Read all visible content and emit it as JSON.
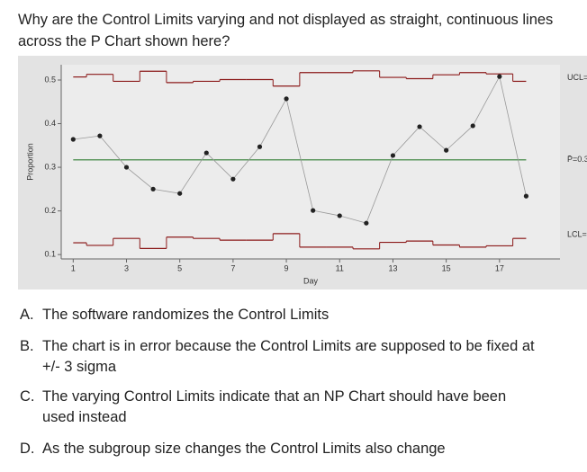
{
  "question": "Why are the Control Limits varying and not displayed as straight, continuous lines across the P Chart shown here?",
  "chart_data": {
    "type": "line",
    "x_label": "Day",
    "y_label": "Proportion",
    "x": [
      1,
      2,
      3,
      4,
      5,
      6,
      7,
      8,
      9,
      10,
      11,
      12,
      13,
      14,
      15,
      16,
      17,
      18
    ],
    "values": [
      0.364,
      0.372,
      0.3,
      0.25,
      0.24,
      0.333,
      0.273,
      0.347,
      0.457,
      0.201,
      0.189,
      0.172,
      0.327,
      0.393,
      0.339,
      0.395,
      0.508,
      0.234
    ],
    "ucl": [
      0.507,
      0.513,
      0.497,
      0.52,
      0.494,
      0.497,
      0.501,
      0.501,
      0.486,
      0.517,
      0.517,
      0.521,
      0.506,
      0.503,
      0.512,
      0.517,
      0.514,
      0.497
    ],
    "lcl": [
      0.127,
      0.121,
      0.137,
      0.114,
      0.14,
      0.137,
      0.133,
      0.133,
      0.148,
      0.117,
      0.117,
      0.113,
      0.128,
      0.131,
      0.122,
      0.117,
      0.12,
      0.137
    ],
    "center": 0.317,
    "ucl_label": "UCL=",
    "center_label": "P̄=0.3",
    "lcl_label": "LCL=",
    "xlim": [
      0.55,
      19.27
    ],
    "xticks": [
      1,
      3,
      5,
      7,
      9,
      11,
      13,
      15,
      17
    ],
    "ylim": [
      0.09,
      0.535
    ],
    "yticks": [
      0.1,
      0.2,
      0.3,
      0.4,
      0.5
    ],
    "color": "#222222",
    "line_color": "#999999",
    "limit_color": "#8b1a1a",
    "center_color": "#2e7d32"
  },
  "options": [
    {
      "letter": "A.",
      "text": "The software randomizes the Control Limits"
    },
    {
      "letter": "B.",
      "text": "The chart is in error because the Control Limits are supposed to be fixed at +/- 3 sigma"
    },
    {
      "letter": "C.",
      "text": "The varying Control Limits indicate that an NP Chart should have been used instead"
    },
    {
      "letter": "D.",
      "text": "As the subgroup size changes the Control Limits also change"
    }
  ]
}
